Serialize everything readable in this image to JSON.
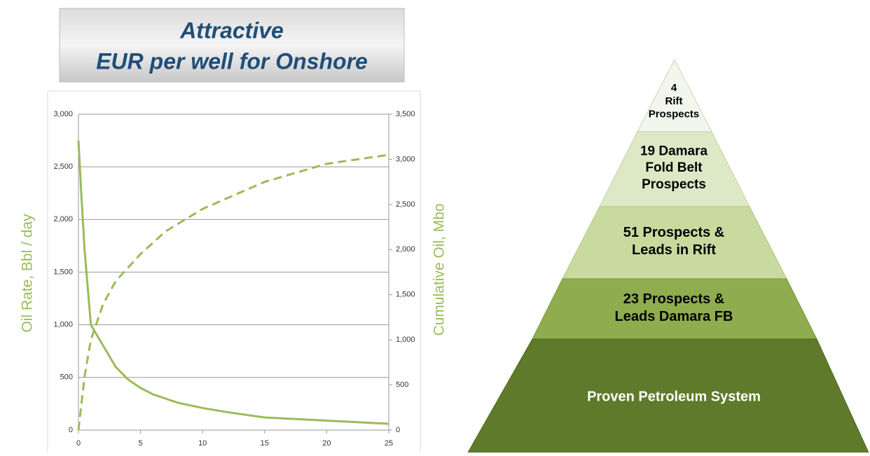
{
  "header": {
    "title_lines": [
      "Attractive",
      "EUR per well for Onshore"
    ]
  },
  "chart_data": {
    "type": "line",
    "ylabel": "Oil Rate, Bbl / day",
    "y2label": "Cumulative Oil, Mbo",
    "xlim": [
      0,
      25
    ],
    "xticks": [
      0,
      5,
      10,
      15,
      20,
      25
    ],
    "ylim": [
      0,
      3000
    ],
    "yticks": [
      0,
      500,
      {
        "value": 1000,
        "label": "1,000"
      },
      {
        "value": 1500,
        "label": "1,500"
      },
      {
        "value": 2000,
        "label": "2,000"
      },
      {
        "value": 2500,
        "label": "2,500"
      },
      {
        "value": 3000,
        "label": "3,000"
      }
    ],
    "y2lim": [
      0,
      3500
    ],
    "y2ticks": [
      0,
      500,
      {
        "value": 1000,
        "label": "1,000"
      },
      {
        "value": 1500,
        "label": "1,500"
      },
      {
        "value": 2000,
        "label": "2,000"
      },
      {
        "value": 2500,
        "label": "2,500"
      },
      {
        "value": 3000,
        "label": "3,000"
      },
      {
        "value": 3500,
        "label": "3,500"
      }
    ],
    "grid": true,
    "color": "#9bbb59",
    "series": [
      {
        "x": [
          0,
          0.25,
          0.5,
          0.75,
          1,
          1.5,
          2,
          3,
          4,
          5,
          6,
          7,
          8,
          10,
          12,
          15,
          20,
          25
        ],
        "values": [
          2750,
          2200,
          1700,
          1350,
          1000,
          900,
          800,
          600,
          480,
          400,
          340,
          300,
          260,
          210,
          170,
          120,
          90,
          60
        ],
        "dashed": false
      },
      {
        "x": [
          0,
          0.5,
          1,
          1.5,
          2,
          3,
          4,
          5,
          7,
          10,
          15,
          20,
          25
        ],
        "values": [
          0,
          600,
          1000,
          1200,
          1400,
          1650,
          1800,
          1950,
          2200,
          2450,
          2750,
          2950,
          3050
        ],
        "dashed": true,
        "axis": "y2"
      }
    ]
  },
  "pyramid": {
    "levels": [
      {
        "lines": [
          "4",
          "Rift",
          "Prospects"
        ]
      },
      {
        "lines": [
          "19 Damara",
          "Fold Belt",
          "Prospects"
        ]
      },
      {
        "lines": [
          "51 Prospects  &",
          "Leads in Rift"
        ]
      },
      {
        "lines": [
          "23 Prospects &",
          "Leads Damara FB"
        ]
      },
      {
        "lines": [
          "Proven Petroleum System"
        ]
      }
    ]
  }
}
